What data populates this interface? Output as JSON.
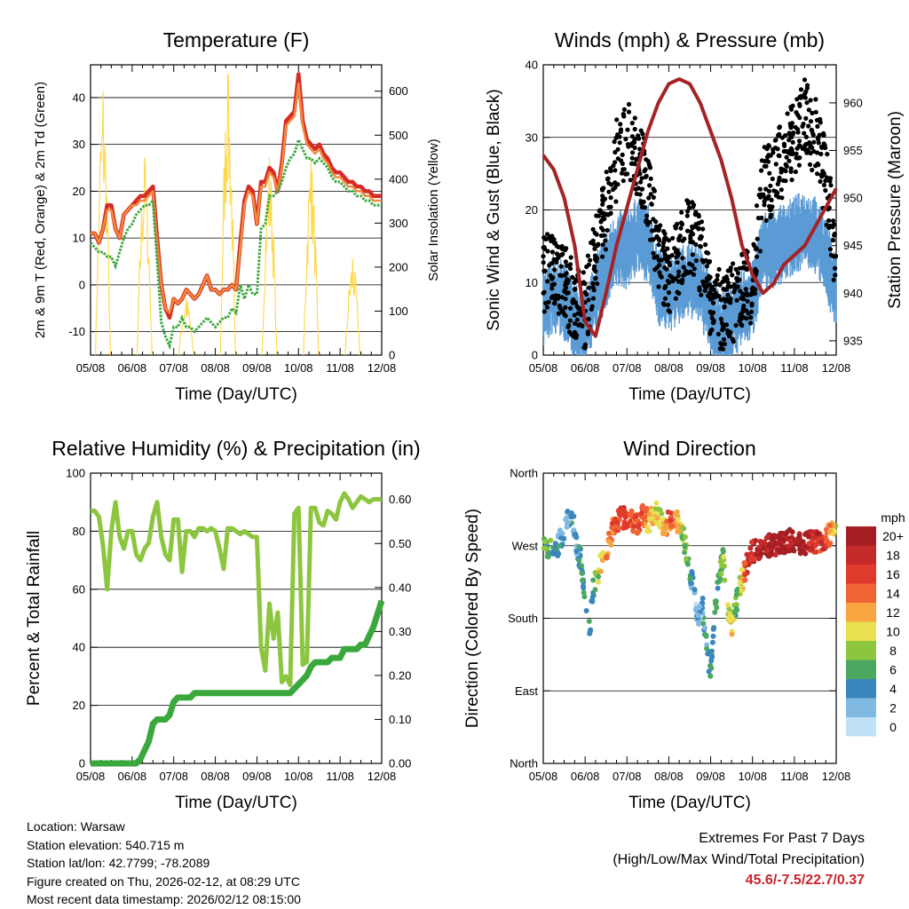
{
  "colors": {
    "temp_red": "#d62b26",
    "temp_orange": "#f08b3c",
    "dew_green": "#3aa83c",
    "solar_yellow": "#ffd84a",
    "wind_blue": "#5b9bd5",
    "gust_black": "#000000",
    "pressure_maroon": "#a52325",
    "rh_green": "#8cc63f",
    "precip_green": "#3aa83c",
    "extremes_red": "#c8242b"
  },
  "time_ticks": [
    "05/08",
    "06/08",
    "07/08",
    "08/08",
    "09/08",
    "10/08",
    "11/08",
    "12/08"
  ],
  "chart_data": [
    {
      "id": "temperature",
      "type": "line",
      "title": "Temperature (F)",
      "xlabel": "Time (Day/UTC)",
      "ylabel": "2m & 9m T (Red, Orange) & 2m Td (Green)",
      "ylabel_right": "Solar Insolation (Yellow)",
      "ylim": [
        -15,
        47
      ],
      "ylim_right": [
        0,
        660
      ],
      "yticks": [
        -10,
        0,
        10,
        20,
        30,
        40
      ],
      "yticks_right": [
        0,
        100,
        200,
        300,
        400,
        500,
        600
      ],
      "x": [
        0,
        0.1,
        0.2,
        0.3,
        0.4,
        0.5,
        0.6,
        0.7,
        0.8,
        0.9,
        1.0,
        1.1,
        1.2,
        1.3,
        1.4,
        1.5,
        1.6,
        1.7,
        1.8,
        1.9,
        2.0,
        2.1,
        2.2,
        2.3,
        2.4,
        2.5,
        2.6,
        2.7,
        2.8,
        2.9,
        3.0,
        3.1,
        3.2,
        3.3,
        3.4,
        3.5,
        3.6,
        3.7,
        3.8,
        3.9,
        4.0,
        4.1,
        4.2,
        4.3,
        4.4,
        4.5,
        4.6,
        4.7,
        4.8,
        4.9,
        5.0,
        5.1,
        5.2,
        5.3,
        5.4,
        5.5,
        5.6,
        5.7,
        5.8,
        5.9,
        6.0,
        6.1,
        6.2,
        6.3,
        6.4,
        6.5,
        6.6,
        6.7,
        6.8,
        6.9,
        7.0
      ],
      "series": [
        {
          "name": "2m T",
          "color": "#d62b26",
          "values": [
            11,
            11,
            9,
            12,
            17,
            17,
            12,
            10,
            15,
            16,
            17,
            18,
            19,
            19,
            20,
            21,
            10,
            0,
            -5,
            -7,
            -3,
            -4,
            -3,
            -1,
            -2,
            -3,
            -2,
            0,
            2,
            -1,
            -1,
            -2,
            -1,
            -1,
            0,
            -1,
            9,
            18,
            21,
            20,
            13,
            22,
            22,
            25,
            24,
            20,
            26,
            35,
            36,
            37,
            45,
            35,
            31,
            30,
            29,
            30,
            28,
            27,
            25,
            24,
            24,
            23,
            22,
            22,
            21,
            21,
            20,
            20,
            19,
            19,
            19
          ]
        },
        {
          "name": "9m T",
          "color": "#f08b3c",
          "values": [
            11,
            11,
            9,
            12,
            16,
            16,
            12,
            10,
            15,
            16,
            17,
            17,
            18,
            18,
            19,
            20,
            9,
            0,
            -5,
            -6,
            -3,
            -4,
            -3,
            -1,
            -2,
            -3,
            -2,
            0,
            2,
            -1,
            -1,
            -2,
            -1,
            -1,
            0,
            -1,
            8,
            17,
            20,
            19,
            13,
            21,
            21,
            24,
            23,
            20,
            25,
            34,
            35,
            36,
            43,
            34,
            30,
            29,
            28,
            29,
            27,
            26,
            24,
            23,
            23,
            22,
            21,
            21,
            20,
            20,
            19,
            19,
            18,
            18,
            18
          ]
        },
        {
          "name": "2m Td",
          "color": "#3aa83c",
          "values": [
            9,
            8,
            7,
            7,
            6,
            6,
            4,
            7,
            10,
            12,
            13,
            15,
            16,
            17,
            17,
            18,
            5,
            -8,
            -11,
            -13,
            -9,
            -9,
            -7,
            -9,
            -9,
            -10,
            -9,
            -8,
            -7,
            -8,
            -9,
            -8,
            -7,
            -7,
            -5,
            -6,
            0,
            -3,
            0,
            -2,
            -2,
            12,
            13,
            19,
            19,
            20,
            22,
            25,
            27,
            28,
            31,
            29,
            27,
            27,
            26,
            27,
            26,
            25,
            23,
            22,
            22,
            21,
            20,
            20,
            19,
            19,
            18,
            18,
            17,
            17,
            17
          ]
        }
      ],
      "solar": {
        "name": "Solar Insolation",
        "color": "#ffd84a",
        "days": [
          0,
          1,
          2,
          3,
          4,
          5,
          6
        ],
        "peaks": [
          600,
          450,
          130,
          640,
          450,
          450,
          220
        ]
      }
    },
    {
      "id": "winds",
      "type": "scatter",
      "title": "Winds (mph) & Pressure (mb)",
      "xlabel": "Time (Day/UTC)",
      "ylabel": "Sonic Wind & Gust (Blue, Black)",
      "ylabel_right": "Station Pressure (Maroon)",
      "ylim": [
        0,
        40
      ],
      "ylim_right": [
        933.5,
        964
      ],
      "yticks": [
        0,
        10,
        20,
        30,
        40
      ],
      "yticks_right": [
        935,
        940,
        945,
        950,
        955,
        960
      ],
      "x": [
        0,
        0.25,
        0.5,
        0.75,
        1.0,
        1.25,
        1.5,
        1.75,
        2.0,
        2.25,
        2.5,
        2.75,
        3.0,
        3.25,
        3.5,
        3.75,
        4.0,
        4.25,
        4.5,
        4.75,
        5.0,
        5.25,
        5.5,
        5.75,
        6.0,
        6.25,
        6.5,
        6.75,
        7.0
      ],
      "series": [
        {
          "name": "Sonic Wind",
          "color": "#5b9bd5",
          "values": [
            7,
            9,
            8,
            5,
            4,
            9,
            12,
            15,
            15,
            17,
            16,
            10,
            9,
            10,
            11,
            10,
            6,
            4,
            5,
            7,
            8,
            15,
            15,
            16,
            17,
            18,
            17,
            14,
            9
          ]
        },
        {
          "name": "Gust",
          "color": "#000000",
          "values": [
            11,
            12,
            10,
            7,
            6,
            14,
            20,
            27,
            30,
            27,
            23,
            14,
            11,
            14,
            17,
            14,
            8,
            6,
            7,
            9,
            10,
            23,
            25,
            27,
            30,
            33,
            30,
            24,
            13
          ]
        },
        {
          "name": "Station Pressure",
          "color": "#a52325",
          "values": [
            954.5,
            953,
            950,
            945,
            937,
            935.5,
            940,
            945,
            949,
            953,
            957,
            960,
            962,
            962.5,
            962,
            960,
            957,
            954,
            950,
            945,
            942,
            940,
            941,
            943,
            944,
            945,
            947,
            949,
            951
          ]
        }
      ]
    },
    {
      "id": "humidity",
      "type": "line",
      "title": "Relative Humidity (%) & Precipitation (in)",
      "xlabel": "Time (Day/UTC)",
      "ylabel": "Percent & Total Rainfall",
      "ylim": [
        0,
        100
      ],
      "ylim_right": [
        0,
        0.66
      ],
      "yticks": [
        0,
        20,
        40,
        60,
        80,
        100
      ],
      "yticks_right": [
        0.0,
        0.1,
        0.2,
        0.3,
        0.4,
        0.5,
        0.6
      ],
      "yticks_right_labels": [
        "0.00",
        "0.10",
        "0.20",
        "0.30",
        "0.40",
        "0.50",
        "0.60"
      ],
      "x": [
        0,
        0.1,
        0.2,
        0.3,
        0.4,
        0.5,
        0.6,
        0.7,
        0.8,
        0.9,
        1.0,
        1.1,
        1.2,
        1.3,
        1.4,
        1.5,
        1.6,
        1.7,
        1.8,
        1.9,
        2.0,
        2.1,
        2.2,
        2.3,
        2.4,
        2.5,
        2.6,
        2.7,
        2.8,
        2.9,
        3.0,
        3.1,
        3.2,
        3.3,
        3.4,
        3.5,
        3.6,
        3.7,
        3.8,
        3.9,
        4.0,
        4.1,
        4.2,
        4.3,
        4.4,
        4.5,
        4.6,
        4.7,
        4.8,
        4.9,
        5.0,
        5.1,
        5.2,
        5.3,
        5.4,
        5.5,
        5.6,
        5.7,
        5.8,
        5.9,
        6.0,
        6.1,
        6.2,
        6.3,
        6.4,
        6.5,
        6.6,
        6.7,
        6.8,
        6.9,
        7.0
      ],
      "series": [
        {
          "name": "Relative Humidity",
          "color": "#8cc63f",
          "values": [
            87,
            87,
            85,
            75,
            60,
            80,
            90,
            78,
            74,
            80,
            80,
            72,
            70,
            74,
            76,
            85,
            90,
            78,
            72,
            70,
            84,
            84,
            66,
            80,
            80,
            78,
            81,
            81,
            80,
            81,
            80,
            74,
            67,
            81,
            81,
            80,
            79,
            80,
            79,
            78,
            78,
            40,
            32,
            55,
            43,
            52,
            28,
            30,
            27,
            86,
            88,
            34,
            35,
            88,
            88,
            83,
            82,
            87,
            86,
            84,
            90,
            93,
            91,
            88,
            90,
            92,
            91,
            90,
            91,
            91,
            91
          ]
        },
        {
          "name": "Total Precipitation",
          "color": "#3aa83c",
          "axis": "right",
          "values": [
            0.0,
            0.0,
            0.0,
            0.0,
            0.0,
            0.0,
            0.0,
            0.0,
            0.0,
            0.0,
            0.0,
            0.0,
            0.01,
            0.03,
            0.05,
            0.09,
            0.1,
            0.1,
            0.1,
            0.11,
            0.14,
            0.15,
            0.15,
            0.15,
            0.15,
            0.16,
            0.16,
            0.16,
            0.16,
            0.16,
            0.16,
            0.16,
            0.16,
            0.16,
            0.16,
            0.16,
            0.16,
            0.16,
            0.16,
            0.16,
            0.16,
            0.16,
            0.16,
            0.16,
            0.16,
            0.16,
            0.16,
            0.16,
            0.16,
            0.17,
            0.18,
            0.19,
            0.2,
            0.22,
            0.23,
            0.23,
            0.23,
            0.23,
            0.24,
            0.24,
            0.24,
            0.26,
            0.26,
            0.26,
            0.26,
            0.27,
            0.27,
            0.29,
            0.31,
            0.34,
            0.37
          ]
        }
      ]
    },
    {
      "id": "wind_direction",
      "type": "scatter",
      "title": "Wind Direction",
      "xlabel": "Time (Day/UTC)",
      "ylabel": "Direction (Colored By Speed)",
      "ylim": [
        0,
        360
      ],
      "yticks": [
        0,
        90,
        180,
        270,
        360
      ],
      "ytick_labels": [
        "North",
        "East",
        "South",
        "West",
        "North"
      ],
      "x": [
        0,
        0.1,
        0.2,
        0.3,
        0.4,
        0.5,
        0.6,
        0.7,
        0.8,
        0.9,
        1.0,
        1.1,
        1.2,
        1.3,
        1.4,
        1.5,
        1.6,
        1.7,
        1.8,
        1.9,
        2.0,
        2.1,
        2.2,
        2.3,
        2.4,
        2.5,
        2.6,
        2.7,
        2.8,
        2.9,
        3.0,
        3.1,
        3.2,
        3.3,
        3.4,
        3.5,
        3.6,
        3.7,
        3.8,
        3.9,
        4.0,
        4.1,
        4.2,
        4.3,
        4.4,
        4.5,
        4.6,
        4.7,
        4.8,
        4.9,
        5.0,
        5.1,
        5.2,
        5.3,
        5.4,
        5.5,
        5.6,
        5.7,
        5.8,
        5.9,
        6.0,
        6.1,
        6.2,
        6.3,
        6.4,
        6.5,
        6.6,
        6.7,
        6.8,
        6.9,
        7.0
      ],
      "series": [
        {
          "name": "Wind Direction",
          "values": [
            270,
            265,
            262,
            268,
            275,
            290,
            310,
            305,
            270,
            250,
            210,
            165,
            220,
            235,
            250,
            260,
            280,
            295,
            302,
            303,
            305,
            301,
            296,
            300,
            310,
            300,
            305,
            310,
            300,
            296,
            300,
            302,
            298,
            287,
            270,
            240,
            210,
            170,
            200,
            150,
            110,
            190,
            225,
            260,
            200,
            170,
            195,
            220,
            236,
            255,
            262,
            266,
            268,
            270,
            270,
            270,
            272,
            274,
            276,
            276,
            276,
            274,
            272,
            272,
            274,
            276,
            277,
            279,
            282,
            286,
            290
          ]
        },
        {
          "name": "Speed",
          "values": [
            6,
            7,
            6,
            5,
            3,
            3,
            3,
            4,
            3,
            4,
            5,
            5,
            6,
            8,
            11,
            13,
            14,
            14,
            15,
            16,
            16,
            15,
            14,
            15,
            14,
            12,
            10,
            10,
            9,
            12,
            14,
            15,
            12,
            9,
            7,
            5,
            3,
            2,
            3,
            4,
            5,
            5,
            6,
            8,
            9,
            10,
            6,
            8,
            14,
            17,
            18,
            18,
            19,
            20,
            20,
            20,
            20,
            20,
            20,
            19,
            20,
            20,
            19,
            19,
            18,
            18,
            17,
            16,
            14,
            12,
            9
          ]
        }
      ],
      "legend": {
        "title": "mph",
        "labels": [
          "20+",
          "18",
          "16",
          "14",
          "12",
          "10",
          "8",
          "6",
          "4",
          "2",
          "0"
        ],
        "colors": [
          "#a51e22",
          "#c42a2a",
          "#e03a2d",
          "#f06434",
          "#f7a541",
          "#e8e051",
          "#8cc63f",
          "#4aa861",
          "#3a86bf",
          "#80b9e1",
          "#bfe2f7"
        ]
      }
    }
  ],
  "info": {
    "location": "Location: Warsaw",
    "elevation": "Station elevation: 540.715 m",
    "latlon": "Station lat/lon: 42.7799; -78.2089",
    "created": "Figure created on Thu, 2026-02-12, at 08:29 UTC",
    "recent": "Most recent data timestamp: 2026/02/12 08:15:00"
  },
  "extremes": {
    "title": "Extremes For Past 7 Days",
    "subtitle": "(High/Low/Max Wind/Total Precipitation)",
    "values": "45.6/-7.5/22.7/0.37"
  }
}
